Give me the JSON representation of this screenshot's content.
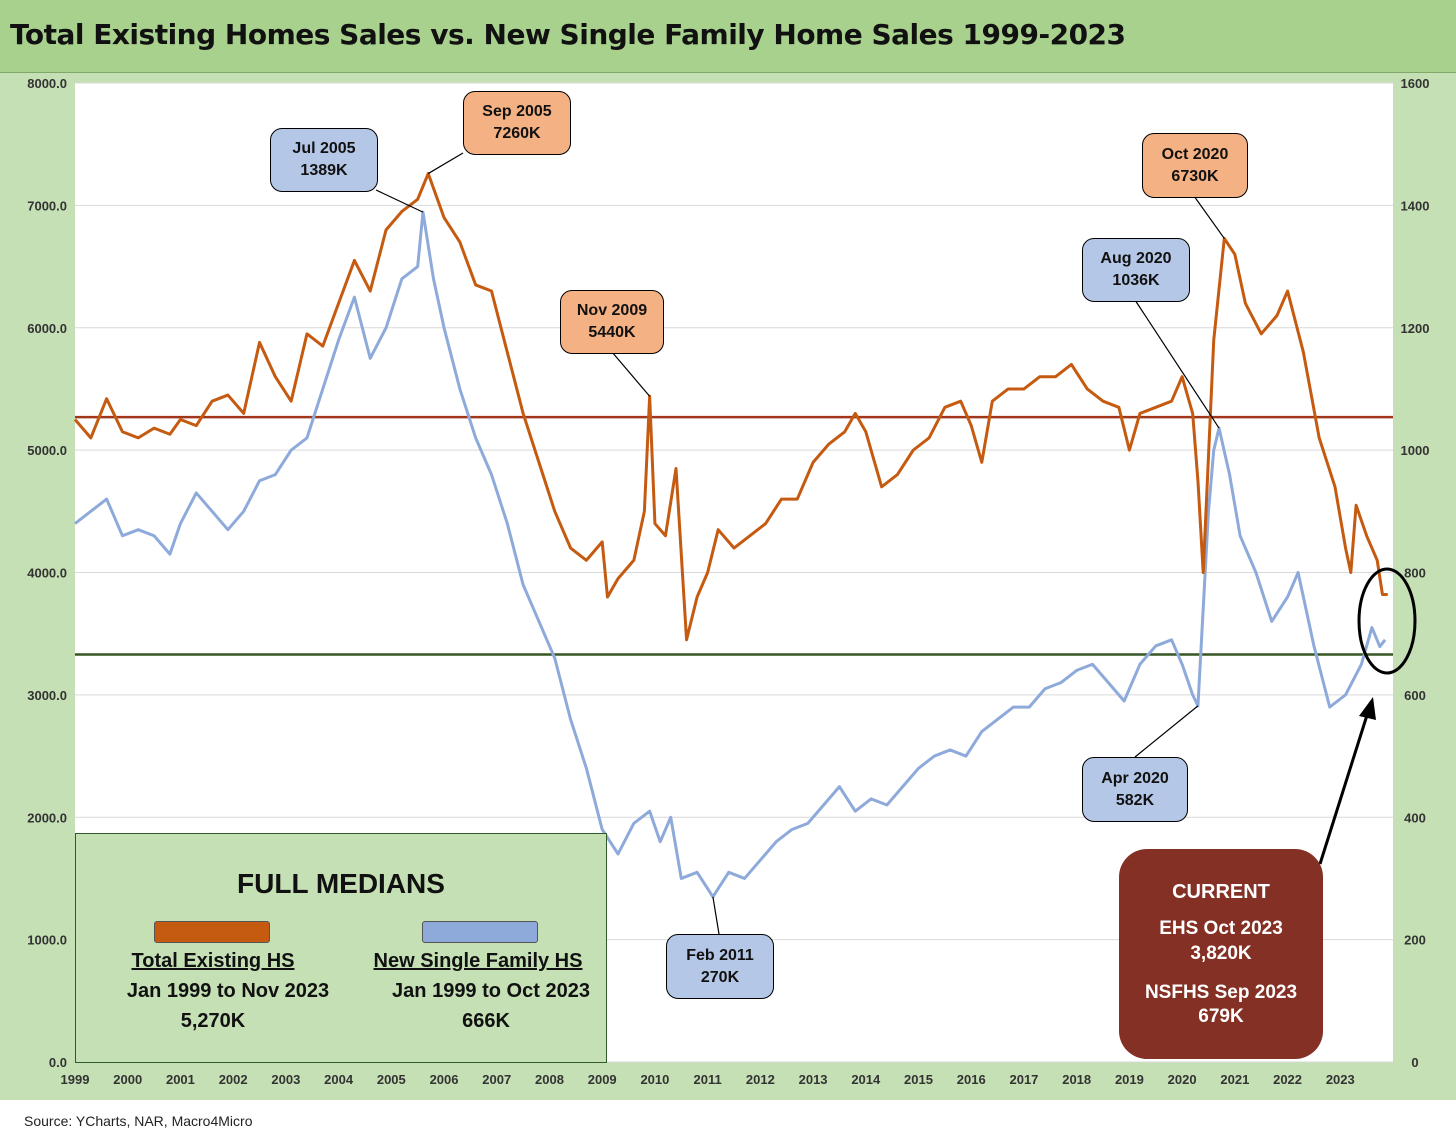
{
  "title": "Total Existing Homes Sales vs. New Single Family Home Sales 1999-2023",
  "source": "Source: YCharts, NAR, Macro4Micro",
  "colors": {
    "existing": "#c55a11",
    "new_single_family": "#8eaadb",
    "median_existing": "#a0371a",
    "median_new": "#375623",
    "background": "#c5e0b4",
    "title_bar": "#a9d18e",
    "current_box": "#843024"
  },
  "callouts": [
    {
      "id": "jul2005",
      "line1": "Jul 2005",
      "line2": "1389K",
      "style": "blue"
    },
    {
      "id": "sep2005",
      "line1": "Sep 2005",
      "line2": "7260K",
      "style": "orange"
    },
    {
      "id": "nov2009",
      "line1": "Nov 2009",
      "line2": "5440K",
      "style": "orange"
    },
    {
      "id": "oct2020",
      "line1": "Oct 2020",
      "line2": "6730K",
      "style": "orange"
    },
    {
      "id": "aug2020",
      "line1": "Aug 2020",
      "line2": "1036K",
      "style": "blue"
    },
    {
      "id": "apr2020",
      "line1": "Apr 2020",
      "line2": "582K",
      "style": "blue"
    },
    {
      "id": "feb2011",
      "line1": "Feb 2011",
      "line2": "270K",
      "style": "blue"
    }
  ],
  "medians_box": {
    "title": "FULL MEDIANS",
    "existing": {
      "label": "Total Existing HS",
      "period": "Jan 1999 to Nov 2023",
      "value": "5,270K"
    },
    "new": {
      "label": "New Single Family HS",
      "period": "Jan 1999 to Oct 2023",
      "value": "666K"
    }
  },
  "current_box": {
    "title": "CURRENT",
    "ehs_label": "EHS Oct 2023",
    "ehs_value": "3,820K",
    "nsfhs_label": "NSFHS Sep 2023",
    "nsfhs_value": "679K"
  },
  "chart_data": {
    "type": "line",
    "x_ticks": [
      "1999",
      "2000",
      "2001",
      "2002",
      "2003",
      "2004",
      "2005",
      "2006",
      "2007",
      "2008",
      "2009",
      "2010",
      "2011",
      "2012",
      "2013",
      "2014",
      "2015",
      "2016",
      "2017",
      "2018",
      "2019",
      "2020",
      "2021",
      "2022",
      "2023"
    ],
    "y_left": {
      "ylim": [
        0,
        8000
      ],
      "ticks": [
        "0.0",
        "1000.0",
        "2000.0",
        "3000.0",
        "4000.0",
        "5000.0",
        "6000.0",
        "7000.0",
        "8000.0"
      ]
    },
    "y_right": {
      "ylim": [
        0,
        1600
      ],
      "ticks": [
        "0",
        "200",
        "400",
        "600",
        "800",
        "1000",
        "1200",
        "1400",
        "1600"
      ]
    },
    "grid": true,
    "series": [
      {
        "name": "Total Existing HS",
        "axis": "left",
        "points": [
          [
            1999.0,
            5250
          ],
          [
            1999.3,
            5100
          ],
          [
            1999.6,
            5420
          ],
          [
            1999.9,
            5150
          ],
          [
            2000.2,
            5100
          ],
          [
            2000.5,
            5180
          ],
          [
            2000.8,
            5130
          ],
          [
            2001.0,
            5250
          ],
          [
            2001.3,
            5200
          ],
          [
            2001.6,
            5400
          ],
          [
            2001.9,
            5450
          ],
          [
            2002.2,
            5300
          ],
          [
            2002.5,
            5880
          ],
          [
            2002.8,
            5600
          ],
          [
            2003.1,
            5400
          ],
          [
            2003.4,
            5950
          ],
          [
            2003.7,
            5850
          ],
          [
            2004.0,
            6200
          ],
          [
            2004.3,
            6550
          ],
          [
            2004.6,
            6300
          ],
          [
            2004.9,
            6800
          ],
          [
            2005.2,
            6950
          ],
          [
            2005.5,
            7050
          ],
          [
            2005.7,
            7260
          ],
          [
            2006.0,
            6900
          ],
          [
            2006.3,
            6700
          ],
          [
            2006.6,
            6350
          ],
          [
            2006.9,
            6300
          ],
          [
            2007.2,
            5800
          ],
          [
            2007.5,
            5300
          ],
          [
            2007.8,
            4900
          ],
          [
            2008.1,
            4500
          ],
          [
            2008.4,
            4200
          ],
          [
            2008.7,
            4100
          ],
          [
            2009.0,
            4250
          ],
          [
            2009.1,
            3800
          ],
          [
            2009.3,
            3950
          ],
          [
            2009.6,
            4100
          ],
          [
            2009.8,
            4500
          ],
          [
            2009.9,
            5440
          ],
          [
            2010.0,
            4400
          ],
          [
            2010.2,
            4300
          ],
          [
            2010.4,
            4850
          ],
          [
            2010.6,
            3450
          ],
          [
            2010.8,
            3800
          ],
          [
            2011.0,
            4000
          ],
          [
            2011.2,
            4350
          ],
          [
            2011.5,
            4200
          ],
          [
            2011.8,
            4300
          ],
          [
            2012.1,
            4400
          ],
          [
            2012.4,
            4600
          ],
          [
            2012.7,
            4600
          ],
          [
            2013.0,
            4900
          ],
          [
            2013.3,
            5050
          ],
          [
            2013.6,
            5150
          ],
          [
            2013.8,
            5300
          ],
          [
            2014.0,
            5150
          ],
          [
            2014.3,
            4700
          ],
          [
            2014.6,
            4800
          ],
          [
            2014.9,
            5000
          ],
          [
            2015.2,
            5100
          ],
          [
            2015.5,
            5350
          ],
          [
            2015.8,
            5400
          ],
          [
            2016.0,
            5200
          ],
          [
            2016.2,
            4900
          ],
          [
            2016.4,
            5400
          ],
          [
            2016.7,
            5500
          ],
          [
            2017.0,
            5500
          ],
          [
            2017.3,
            5600
          ],
          [
            2017.6,
            5600
          ],
          [
            2017.9,
            5700
          ],
          [
            2018.2,
            5500
          ],
          [
            2018.5,
            5400
          ],
          [
            2018.8,
            5350
          ],
          [
            2019.0,
            5000
          ],
          [
            2019.2,
            5300
          ],
          [
            2019.5,
            5350
          ],
          [
            2019.8,
            5400
          ],
          [
            2020.0,
            5600
          ],
          [
            2020.2,
            5300
          ],
          [
            2020.3,
            4750
          ],
          [
            2020.4,
            4000
          ],
          [
            2020.6,
            5900
          ],
          [
            2020.8,
            6730
          ],
          [
            2021.0,
            6600
          ],
          [
            2021.2,
            6200
          ],
          [
            2021.5,
            5950
          ],
          [
            2021.8,
            6100
          ],
          [
            2022.0,
            6300
          ],
          [
            2022.3,
            5800
          ],
          [
            2022.6,
            5100
          ],
          [
            2022.9,
            4700
          ],
          [
            2023.1,
            4200
          ],
          [
            2023.2,
            4000
          ],
          [
            2023.3,
            4550
          ],
          [
            2023.5,
            4300
          ],
          [
            2023.7,
            4100
          ],
          [
            2023.8,
            3820
          ],
          [
            2023.9,
            3820
          ]
        ]
      },
      {
        "name": "New Single Family HS",
        "axis": "right",
        "points": [
          [
            1999.0,
            880
          ],
          [
            1999.3,
            900
          ],
          [
            1999.6,
            920
          ],
          [
            1999.9,
            860
          ],
          [
            2000.2,
            870
          ],
          [
            2000.5,
            860
          ],
          [
            2000.8,
            830
          ],
          [
            2001.0,
            880
          ],
          [
            2001.3,
            930
          ],
          [
            2001.6,
            900
          ],
          [
            2001.9,
            870
          ],
          [
            2002.2,
            900
          ],
          [
            2002.5,
            950
          ],
          [
            2002.8,
            960
          ],
          [
            2003.1,
            1000
          ],
          [
            2003.4,
            1020
          ],
          [
            2003.7,
            1100
          ],
          [
            2004.0,
            1180
          ],
          [
            2004.3,
            1250
          ],
          [
            2004.6,
            1150
          ],
          [
            2004.9,
            1200
          ],
          [
            2005.2,
            1280
          ],
          [
            2005.5,
            1300
          ],
          [
            2005.6,
            1389
          ],
          [
            2005.8,
            1280
          ],
          [
            2006.0,
            1200
          ],
          [
            2006.3,
            1100
          ],
          [
            2006.6,
            1020
          ],
          [
            2006.9,
            960
          ],
          [
            2007.2,
            880
          ],
          [
            2007.5,
            780
          ],
          [
            2007.8,
            720
          ],
          [
            2008.1,
            660
          ],
          [
            2008.4,
            560
          ],
          [
            2008.7,
            480
          ],
          [
            2009.0,
            380
          ],
          [
            2009.3,
            340
          ],
          [
            2009.6,
            390
          ],
          [
            2009.9,
            410
          ],
          [
            2010.1,
            360
          ],
          [
            2010.3,
            400
          ],
          [
            2010.5,
            300
          ],
          [
            2010.8,
            310
          ],
          [
            2011.1,
            270
          ],
          [
            2011.4,
            310
          ],
          [
            2011.7,
            300
          ],
          [
            2012.0,
            330
          ],
          [
            2012.3,
            360
          ],
          [
            2012.6,
            380
          ],
          [
            2012.9,
            390
          ],
          [
            2013.2,
            420
          ],
          [
            2013.5,
            450
          ],
          [
            2013.8,
            410
          ],
          [
            2014.1,
            430
          ],
          [
            2014.4,
            420
          ],
          [
            2014.7,
            450
          ],
          [
            2015.0,
            480
          ],
          [
            2015.3,
            500
          ],
          [
            2015.6,
            510
          ],
          [
            2015.9,
            500
          ],
          [
            2016.2,
            540
          ],
          [
            2016.5,
            560
          ],
          [
            2016.8,
            580
          ],
          [
            2017.1,
            580
          ],
          [
            2017.4,
            610
          ],
          [
            2017.7,
            620
          ],
          [
            2018.0,
            640
          ],
          [
            2018.3,
            650
          ],
          [
            2018.6,
            620
          ],
          [
            2018.9,
            590
          ],
          [
            2019.2,
            650
          ],
          [
            2019.5,
            680
          ],
          [
            2019.8,
            690
          ],
          [
            2020.0,
            650
          ],
          [
            2020.2,
            600
          ],
          [
            2020.3,
            582
          ],
          [
            2020.5,
            900
          ],
          [
            2020.6,
            1000
          ],
          [
            2020.7,
            1036
          ],
          [
            2020.9,
            960
          ],
          [
            2021.1,
            860
          ],
          [
            2021.4,
            800
          ],
          [
            2021.7,
            720
          ],
          [
            2022.0,
            760
          ],
          [
            2022.2,
            800
          ],
          [
            2022.5,
            680
          ],
          [
            2022.8,
            580
          ],
          [
            2023.1,
            600
          ],
          [
            2023.4,
            650
          ],
          [
            2023.6,
            710
          ],
          [
            2023.75,
            679
          ],
          [
            2023.85,
            690
          ]
        ]
      }
    ],
    "medians": {
      "existing": 5270,
      "new_single_family": 666
    }
  }
}
